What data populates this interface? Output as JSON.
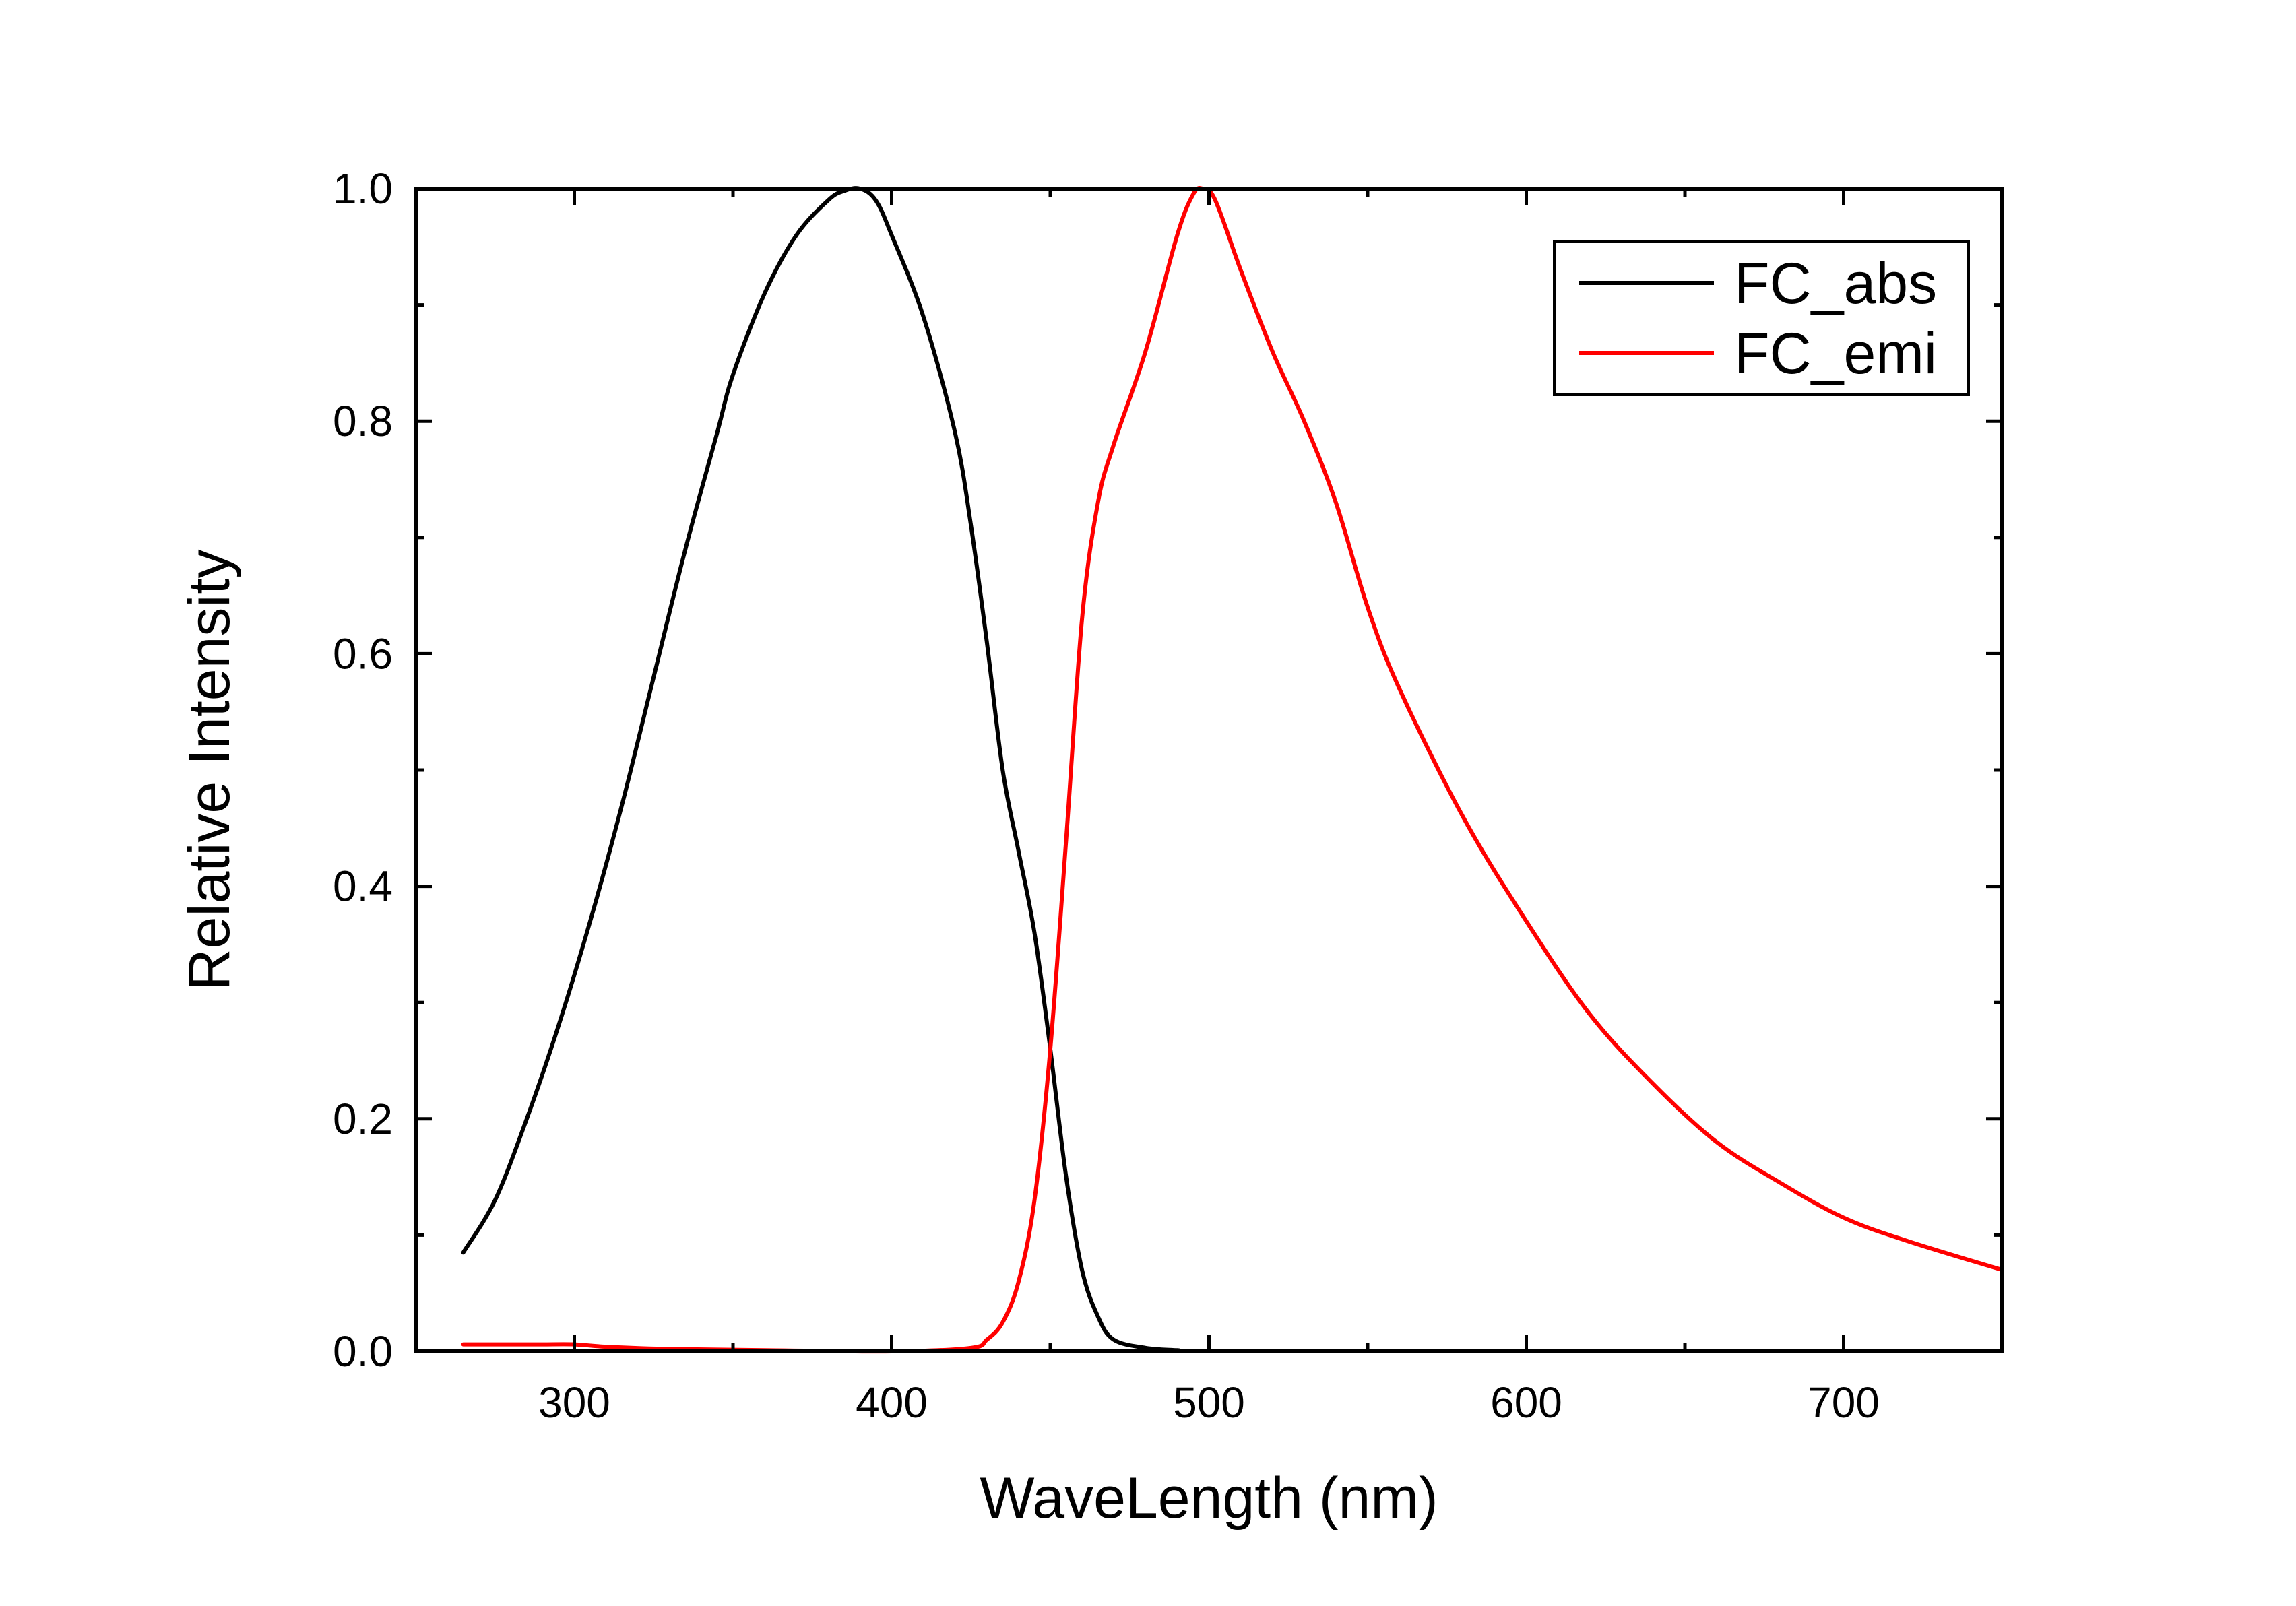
{
  "chart_data": {
    "type": "line",
    "title": "",
    "xlabel": "WaveLength (nm)",
    "ylabel": "Relative Intensity",
    "xlim": [
      250,
      750
    ],
    "ylim": [
      0.0,
      1.0
    ],
    "x_ticks": [
      300,
      400,
      500,
      600,
      700
    ],
    "x_tick_labels": [
      "300",
      "400",
      "500",
      "600",
      "700"
    ],
    "y_ticks": [
      0.0,
      0.2,
      0.4,
      0.6,
      0.8,
      1.0
    ],
    "y_tick_labels": [
      "0.0",
      "0.2",
      "0.4",
      "0.6",
      "0.8",
      "1.0"
    ],
    "grid": false,
    "legend_position": "top-right",
    "series": [
      {
        "name": "FC_abs",
        "color": "#000000",
        "x": [
          265,
          275,
          285,
          295,
          305,
          315,
          325,
          335,
          345,
          350,
          360,
          370,
          380,
          385,
          390,
          395,
          400,
          410,
          420,
          425,
          430,
          435,
          440,
          445,
          450,
          455,
          460,
          465,
          470,
          480,
          490,
          500,
          600,
          750
        ],
        "y": [
          0.085,
          0.13,
          0.2,
          0.28,
          0.37,
          0.47,
          0.58,
          0.69,
          0.79,
          0.84,
          0.91,
          0.96,
          0.99,
          0.998,
          1.0,
          0.99,
          0.96,
          0.89,
          0.79,
          0.71,
          0.61,
          0.5,
          0.43,
          0.36,
          0.26,
          0.15,
          0.07,
          0.03,
          0.01,
          0.003,
          0.001,
          0.0,
          0.0,
          0.0
        ]
      },
      {
        "name": "FC_emi",
        "color": "#ff0000",
        "x": [
          265,
          280,
          290,
          300,
          310,
          330,
          360,
          400,
          425,
          430,
          435,
          440,
          445,
          450,
          455,
          460,
          465,
          470,
          480,
          490,
          495,
          498,
          502,
          510,
          520,
          530,
          540,
          550,
          560,
          580,
          600,
          620,
          640,
          660,
          680,
          700,
          720,
          750
        ],
        "y": [
          0.006,
          0.006,
          0.006,
          0.006,
          0.004,
          0.002,
          0.001,
          0.0,
          0.003,
          0.01,
          0.025,
          0.06,
          0.13,
          0.26,
          0.44,
          0.63,
          0.73,
          0.78,
          0.86,
          0.96,
          0.995,
          1.0,
          0.99,
          0.93,
          0.86,
          0.8,
          0.73,
          0.64,
          0.57,
          0.46,
          0.37,
          0.29,
          0.23,
          0.18,
          0.145,
          0.115,
          0.095,
          0.07
        ]
      }
    ]
  }
}
